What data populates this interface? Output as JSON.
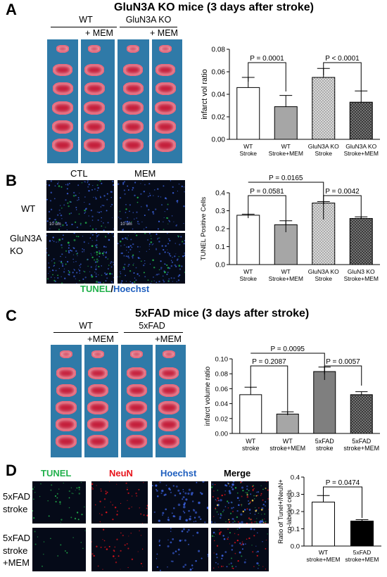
{
  "panels": {
    "A": {
      "letter": "A",
      "title": "GluN3A KO mice (3 days after stroke)",
      "groups": [
        "WT",
        "+ MEM",
        "GluN3A KO",
        "+ MEM"
      ]
    },
    "B": {
      "letter": "B",
      "columns": [
        "CTL",
        "MEM"
      ],
      "rows": [
        "WT",
        "GluN3A KO"
      ],
      "scale_label": "10 um",
      "stain_green": "TUNEL",
      "stain_sep": "/",
      "stain_blue": "Hoechst"
    },
    "C": {
      "letter": "C",
      "title": "5xFAD mice (3 days after stroke)",
      "groups": [
        "WT",
        "+MEM",
        "5xFAD",
        "+MEM"
      ]
    },
    "D": {
      "letter": "D",
      "columns": [
        "TUNEL",
        "NeuN",
        "Hoechst",
        "Merge"
      ],
      "rows": [
        "5xFAD stroke",
        "5xFAD stroke +MEM"
      ]
    }
  },
  "colors": {
    "tunel": "#22b14c",
    "neun": "#e8141c",
    "hoechst": "#1f5fbf",
    "bar_white": "#ffffff",
    "bar_gray": "#a6a6a6",
    "bar_dark": "#4d4d4d",
    "bar_black": "#000000"
  },
  "chart_data": [
    {
      "id": "A",
      "type": "bar",
      "ylabel": "infarct vol ratio",
      "ylim": [
        0,
        0.08
      ],
      "yticks": [
        "0.00",
        "0.02",
        "0.04",
        "0.06",
        "0.08"
      ],
      "categories": [
        [
          "WT",
          "Stroke"
        ],
        [
          "WT",
          "Stroke+MEM"
        ],
        [
          "GluN3A KO",
          "Stroke"
        ],
        [
          "GluN3A KO",
          "Stroke+MEM"
        ]
      ],
      "values": [
        0.046,
        0.029,
        0.055,
        0.033
      ],
      "errors": [
        0.009,
        0.01,
        0.008,
        0.01
      ],
      "fills": [
        "white",
        "gray",
        "hatch-light",
        "hatch-dark"
      ],
      "comparisons": [
        {
          "from": 0,
          "to": 1,
          "label": "P = 0.0001"
        },
        {
          "from": 2,
          "to": 3,
          "label": "P < 0.0001"
        }
      ]
    },
    {
      "id": "B",
      "type": "bar",
      "ylabel": "TUNEL Positive Cells",
      "ylim": [
        0,
        0.4
      ],
      "yticks": [
        "0.0",
        "0.1",
        "0.2",
        "0.3",
        "0.4"
      ],
      "categories": [
        [
          "WT",
          "Stroke"
        ],
        [
          "WT",
          "Stroke+MEM"
        ],
        [
          "GluN3A KO",
          "Stroke"
        ],
        [
          "GluN3 KO",
          "Stroke+MEM"
        ]
      ],
      "values": [
        0.275,
        0.222,
        0.343,
        0.257
      ],
      "errors": [
        0.006,
        0.022,
        0.008,
        0.009
      ],
      "fills": [
        "white",
        "gray",
        "hatch-light",
        "hatch-dark"
      ],
      "comparisons": [
        {
          "from": 0,
          "to": 2,
          "label": "P = 0.0165"
        },
        {
          "from": 0,
          "to": 1,
          "label": "P = 0.0581"
        },
        {
          "from": 2,
          "to": 3,
          "label": "P = 0.0042"
        }
      ]
    },
    {
      "id": "C",
      "type": "bar",
      "ylabel": "infarct volume ratio",
      "ylim": [
        0,
        0.1
      ],
      "yticks": [
        "0.00",
        "0.02",
        "0.04",
        "0.06",
        "0.08",
        "0.10"
      ],
      "categories": [
        [
          "WT",
          "stroke"
        ],
        [
          "WT",
          "stroke+MEM"
        ],
        [
          "5xFAD",
          "stroke"
        ],
        [
          "5xFAD",
          "stroke+MEM"
        ]
      ],
      "values": [
        0.052,
        0.026,
        0.083,
        0.052
      ],
      "errors": [
        0.01,
        0.003,
        0.006,
        0.004
      ],
      "fills": [
        "white",
        "gray",
        "dark",
        "hatch-dark"
      ],
      "comparisons": [
        {
          "from": 0,
          "to": 2,
          "label": "P = 0.0095"
        },
        {
          "from": 0,
          "to": 1,
          "label": "P = 0.2087"
        },
        {
          "from": 2,
          "to": 3,
          "label": "P = 0.0057"
        }
      ]
    },
    {
      "id": "D",
      "type": "bar",
      "ylabel": "Ratio of Tunel+/NeuN+ co-labeled cells",
      "ylim": [
        0,
        0.4
      ],
      "yticks": [
        "0.0",
        "0.1",
        "0.2",
        "0.3",
        "0.4"
      ],
      "categories": [
        [
          "WT",
          "stroke+MEM"
        ],
        [
          "5xFAD",
          "stroke+MEM"
        ]
      ],
      "values": [
        0.255,
        0.145
      ],
      "errors": [
        0.038,
        0.008
      ],
      "fills": [
        "white",
        "black"
      ],
      "comparisons": [
        {
          "from": 0,
          "to": 1,
          "label": "P = 0.0474"
        }
      ]
    }
  ]
}
